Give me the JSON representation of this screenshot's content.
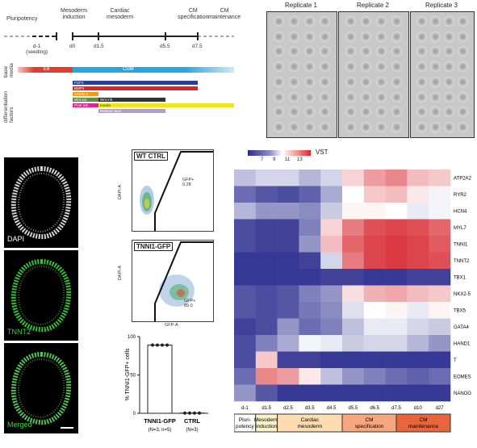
{
  "timeline": {
    "stages": [
      "Pluripotency",
      "Mesoderm\ninduction",
      "Cardiac\nmesoderm",
      "CM\nspecification",
      "CM\nmaintenance"
    ],
    "days": [
      "d-1\n(seeding)",
      "d0",
      "d1.5",
      "d5.5",
      "d7.5"
    ],
    "side_labels": [
      "base\nmedia",
      "differentiation\nfactors"
    ],
    "media": [
      {
        "label": "E8",
        "color": "#e53a2e"
      },
      {
        "label": "CDM",
        "color": "#27a7e0"
      }
    ],
    "factors": [
      {
        "label": "FGF2",
        "color": "#2a3c96",
        "extra": ""
      },
      {
        "label": "BMP4",
        "color": "#e0232b",
        "extra": ""
      },
      {
        "label": "Activin A",
        "color": "#f39a1e",
        "extra": ""
      },
      {
        "label": "Wnt act.",
        "color": "#4a9a3c",
        "extra": "Wnt inh."
      },
      {
        "label": "PI3K inh.",
        "color": "#d4278f",
        "extra": "Insulin"
      },
      {
        "label": "",
        "color": "#b79bcf",
        "extra": "Retinoic acid"
      }
    ]
  },
  "replicates": {
    "titles": [
      "Replicate 1",
      "Replicate 2",
      "Replicate 3"
    ]
  },
  "micrographs": {
    "labels": [
      "DAPI",
      "TNNT2",
      "Merged"
    ]
  },
  "flow": {
    "panel1": {
      "title": "WT CTRL",
      "gate_label": "GFP+\n0.28",
      "y_axis": "DAPI-A"
    },
    "panel2": {
      "title": "TNNI1-GFP",
      "gate_label": "GFP+\n89.0",
      "y_axis": "DAPI-A",
      "x_axis": "GFP-A"
    },
    "bar": {
      "ylabel": "% TNNI1-GFP+ cells",
      "yticks": [
        "0",
        "50",
        "100"
      ],
      "categories": [
        "TNNI1-GFP",
        "CTRL"
      ],
      "sublabels": [
        "(N=3, n=5)",
        "(N=3)"
      ]
    }
  },
  "heatmap": {
    "legend_title": "VST",
    "legend_ticks": [
      "7",
      "9",
      "11",
      "13"
    ],
    "legend_colors": [
      "#2b2d8f",
      "#ffffff",
      "#d7242c"
    ],
    "genes": [
      "ATP2A2",
      "RYR2",
      "HCN4",
      "MYL7",
      "TNNI1",
      "TNNT2",
      "TBX1",
      "NKX2-5",
      "TBX5",
      "GATA4",
      "HAND1",
      "T",
      "EOMES",
      "NANOG"
    ],
    "days": [
      "d-1",
      "d1.5",
      "d2.5",
      "d3.5",
      "d4.5",
      "d5.5",
      "d6.5",
      "d7.5",
      "d10",
      "d27"
    ],
    "stages": [
      {
        "label": "Pluri-\npotency",
        "color": "#ffffff"
      },
      {
        "label": "Mesoderm\ninduction",
        "color": "#fbf3c9"
      },
      {
        "label": "Cardiac\nmesoderm",
        "color": "#fcdcb0"
      },
      {
        "label": "CM\nspecification",
        "color": "#f6a77f"
      },
      {
        "label": "CM\nmaintenance",
        "color": "#e9653b"
      }
    ]
  },
  "chart_data": {
    "type": "bar",
    "categories": [
      "TNNI1-GFP",
      "CTRL"
    ],
    "values": [
      89,
      0.3
    ],
    "ylabel": "% TNNI1-GFP+ cells",
    "ylim": [
      0,
      100
    ]
  }
}
